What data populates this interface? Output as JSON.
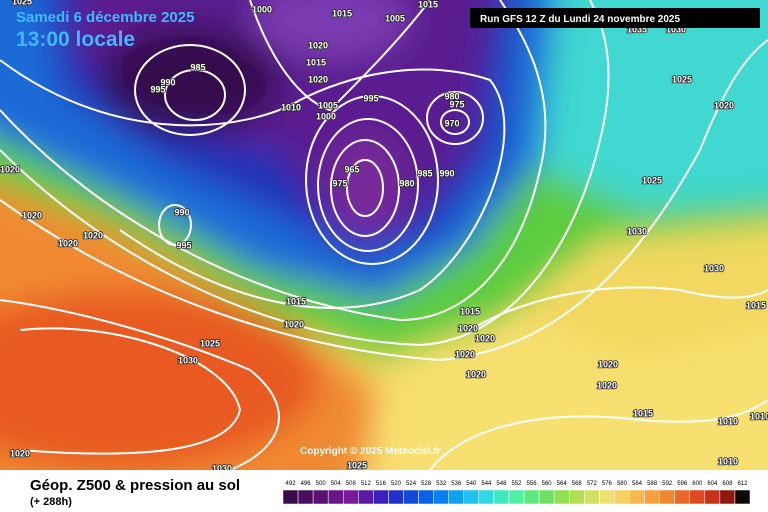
{
  "header": {
    "date": "Samedi 6 décembre 2025",
    "time": "13:00 locale",
    "run_info": "Run GFS 12 Z du Lundi 24 novembre 2025"
  },
  "footer": {
    "title": "Géop. Z500 & pression au sol",
    "subtitle": "(+ 288h)",
    "copyright": "Copyright © 2025 Meteociel.fr"
  },
  "legend": {
    "ticks": [
      492,
      496,
      500,
      504,
      508,
      512,
      516,
      520,
      524,
      528,
      532,
      536,
      540,
      544,
      548,
      552,
      556,
      560,
      564,
      568,
      572,
      576,
      580,
      584,
      588,
      592,
      596,
      600,
      604,
      608,
      612
    ],
    "colors": [
      "#3a0a4a",
      "#4a0e5e",
      "#5a1272",
      "#6a1686",
      "#7a1a9a",
      "#5a1aa8",
      "#3a20b8",
      "#2030c8",
      "#1048d8",
      "#0a60e8",
      "#0880f0",
      "#10a0f0",
      "#20c0f0",
      "#30d8e0",
      "#40e8c0",
      "#50f0a0",
      "#60e880",
      "#70e060",
      "#90e050",
      "#b0e050",
      "#d0e060",
      "#f0e070",
      "#f8d060",
      "#f8b850",
      "#f8a040",
      "#f08830",
      "#e86a28",
      "#e04820",
      "#c83018",
      "#901810",
      "#100808"
    ]
  },
  "isobar_labels": [
    1000,
    1015,
    1005,
    1015,
    1020,
    1015,
    1020,
    985,
    990,
    995,
    1010,
    1005,
    1000,
    995,
    980,
    975,
    970,
    965,
    975,
    980,
    985,
    990,
    990,
    995,
    1020,
    1020,
    1020,
    1020,
    1015,
    1020,
    1025,
    1030,
    1015,
    1020,
    1020,
    1020,
    1020,
    1020,
    1020,
    1015,
    1010,
    1010,
    1010,
    1020,
    1030,
    1025,
    1025,
    1020,
    1025,
    1030,
    1030,
    1015,
    1035,
    1030,
    1025
  ]
}
